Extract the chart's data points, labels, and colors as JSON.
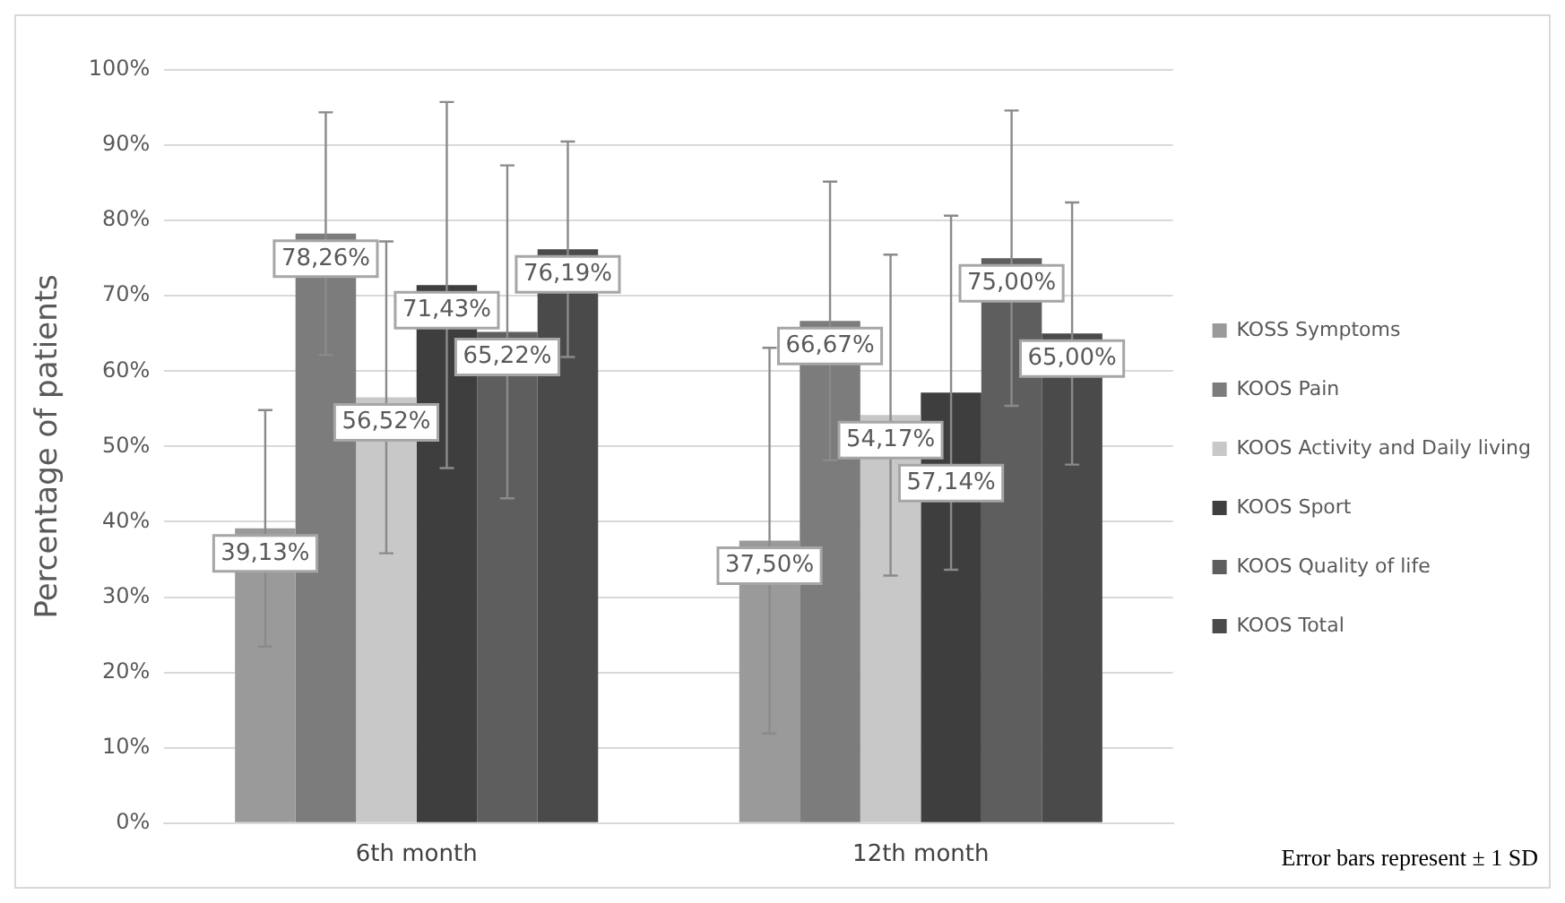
{
  "chart_data": {
    "type": "bar",
    "ylabel": "Percentage of patients",
    "categories": [
      "6th month",
      "12th month"
    ],
    "series": [
      {
        "name": "KOSS Symptoms",
        "color": "#9a9a9a",
        "values": [
          39.13,
          37.5
        ],
        "errors": [
          15.7,
          25.6
        ],
        "value_labels": [
          "39,13%",
          "37,50%"
        ]
      },
      {
        "name": "KOOS Pain",
        "color": "#7c7c7c",
        "values": [
          78.26,
          66.67
        ],
        "errors": [
          16.1,
          18.5
        ],
        "value_labels": [
          "78,26%",
          "66,67%"
        ]
      },
      {
        "name": "KOOS Activity and Daily living",
        "color": "#c8c8c8",
        "values": [
          56.52,
          54.17
        ],
        "errors": [
          20.7,
          21.3
        ],
        "value_labels": [
          "56,52%",
          "54,17%"
        ]
      },
      {
        "name": "KOOS Sport",
        "color": "#3e3e3e",
        "values": [
          71.43,
          57.14
        ],
        "errors": [
          24.3,
          23.5
        ],
        "value_labels": [
          "71,43%",
          "57,14%"
        ]
      },
      {
        "name": "KOOS Quality of life",
        "color": "#5e5e5e",
        "values": [
          65.22,
          75.0
        ],
        "errors": [
          22.1,
          19.6
        ],
        "value_labels": [
          "65,22%",
          "75,00%"
        ]
      },
      {
        "name": "KOOS Total",
        "color": "#4a4a4a",
        "values": [
          76.19,
          65.0
        ],
        "errors": [
          14.3,
          17.4
        ],
        "value_labels": [
          "76,19%",
          "65,00%"
        ]
      }
    ],
    "ylim": [
      0,
      100
    ],
    "yticks": [
      {
        "value": 0,
        "label": "0%"
      },
      {
        "value": 10,
        "label": "10%"
      },
      {
        "value": 20,
        "label": "20%"
      },
      {
        "value": 30,
        "label": "30%"
      },
      {
        "value": 40,
        "label": "40%"
      },
      {
        "value": 50,
        "label": "50%"
      },
      {
        "value": 60,
        "label": "60%"
      },
      {
        "value": 70,
        "label": "70%"
      },
      {
        "value": 80,
        "label": "80%"
      },
      {
        "value": 90,
        "label": "90%"
      },
      {
        "value": 100,
        "label": "100%"
      }
    ],
    "grid": "y",
    "legend": "right",
    "annotations": [
      "Error bars represent ± 1 SD"
    ]
  }
}
